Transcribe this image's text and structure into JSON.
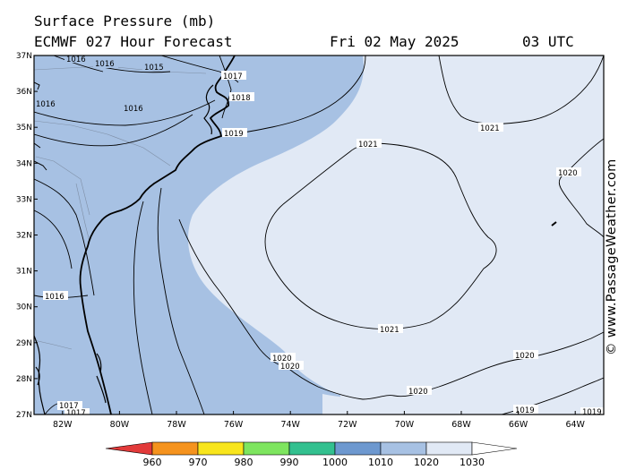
{
  "header": {
    "line1": "Surface Pressure (mb)",
    "line2": "ECMWF 027 Hour Forecast",
    "date": "Fri 02 May 2025",
    "time": "03 UTC"
  },
  "credit": "© www.PassageWeather.com",
  "axes": {
    "lat_labels": [
      "37N",
      "36N",
      "35N",
      "34N",
      "33N",
      "32N",
      "31N",
      "30N",
      "29N",
      "28N",
      "27N"
    ],
    "lon_labels": [
      "82W",
      "80W",
      "78W",
      "76W",
      "74W",
      "72W",
      "70W",
      "68W",
      "66W",
      "64W"
    ],
    "lat_range": [
      27,
      37
    ],
    "lon_range": [
      -83,
      -63
    ]
  },
  "isobar_labels": [
    {
      "text": "1016"
    },
    {
      "text": "1016"
    },
    {
      "text": "1015"
    },
    {
      "text": "1017"
    },
    {
      "text": "1018"
    },
    {
      "text": "1016"
    },
    {
      "text": "1016"
    },
    {
      "text": "1019"
    },
    {
      "text": "1021"
    },
    {
      "text": "1021"
    },
    {
      "text": "1020"
    },
    {
      "text": "1016"
    },
    {
      "text": "1021"
    },
    {
      "text": "1020"
    },
    {
      "text": "1020"
    },
    {
      "text": "1020"
    },
    {
      "text": "1020"
    },
    {
      "text": "1019"
    },
    {
      "text": "1017"
    },
    {
      "text": "1017"
    },
    {
      "text": "1019"
    }
  ],
  "colorbar": {
    "labels": [
      "960",
      "970",
      "980",
      "990",
      "1000",
      "1010",
      "1020",
      "1030"
    ],
    "colors": [
      "#e23a3a",
      "#f5931e",
      "#f8e51c",
      "#7ee55f",
      "#33c08f",
      "#6d98cf",
      "#a7c1e3",
      "#e1e9f5"
    ]
  },
  "fill_colors": {
    "low": "#a7c1e3",
    "high": "#e1e9f5"
  }
}
